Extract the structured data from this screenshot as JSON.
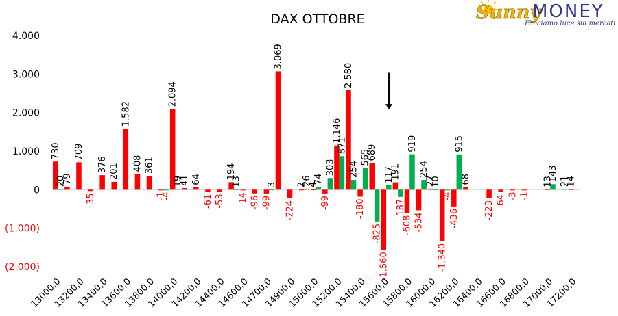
{
  "logo": {
    "word1": "Sunny",
    "word2": "MONEY",
    "tagline": "Facciamo luce sui mercati"
  },
  "colors": {
    "call": "#ff0000",
    "put": "#00b050",
    "negative_label": "#ff0000",
    "axis_label": "#000000",
    "arrow": "#000000"
  },
  "chart_data": {
    "type": "bar",
    "title": "DAX OTTOBRE",
    "xlabel": "",
    "ylabel": "",
    "ylim": [
      -2000,
      4000
    ],
    "yticks": [
      4000,
      3000,
      2000,
      1000,
      0,
      -1000,
      -2000
    ],
    "ytick_labels": [
      "4.000",
      "3.000",
      "2.000",
      "1.000",
      "0",
      "(1.000)",
      "(2.000)"
    ],
    "grid": false,
    "legend": "none",
    "categories": [
      "13000,0",
      "13100,0",
      "13200,0",
      "13300,0",
      "13400,0",
      "13500,0",
      "13600,0",
      "13700,0",
      "13800,0",
      "13900,0",
      "14000,0",
      "14100,0",
      "14200,0",
      "14300,0",
      "14400,0",
      "14500,0",
      "14600,0",
      "14650,0",
      "14700,0",
      "14800,0",
      "14900,0",
      "14950,0",
      "15000,0",
      "15100,0",
      "15200,0",
      "15300,0",
      "15400,0",
      "15500,0",
      "15600,0",
      "15700,0",
      "15800,0",
      "15900,0",
      "16000,0",
      "16100,0",
      "16200,0",
      "16300,0",
      "16400,0",
      "16500,0",
      "16600,0",
      "16700,0",
      "16800,0",
      "16900,0",
      "17000,0",
      "17100,0",
      "17200,0"
    ],
    "visible_category_labels": [
      "13000,0",
      "13200,0",
      "13400,0",
      "13600,0",
      "13800,0",
      "14000,0",
      "14200,0",
      "14400,0",
      "14600,0",
      "14700,0",
      "14900,0",
      "15000,0",
      "15200,0",
      "15400,0",
      "15600,0",
      "15800,0",
      "16000,0",
      "16200,0",
      "16400,0",
      "16600,0",
      "16800,0",
      "17000,0",
      "17200,0"
    ],
    "series": [
      {
        "color": "#ff0000",
        "values": [
          730,
          79,
          709,
          -35,
          376,
          201,
          1582,
          408,
          361,
          -1,
          2094,
          41,
          64,
          -61,
          -53,
          194,
          -14,
          -96,
          -99,
          3069,
          -224,
          2,
          4,
          -99,
          1146,
          2580,
          -180,
          689,
          -1560,
          191,
          -608,
          -534,
          27,
          -1340,
          -436,
          68,
          null,
          -223,
          -64,
          -3,
          -1,
          null,
          13,
          null,
          14
        ]
      },
      {
        "color": "#00b050",
        "values": [
          20,
          null,
          null,
          null,
          null,
          null,
          null,
          null,
          null,
          -4,
          19,
          null,
          null,
          null,
          null,
          13,
          null,
          null,
          3,
          null,
          null,
          26,
          74,
          303,
          871,
          254,
          565,
          -825,
          117,
          -187,
          919,
          254,
          10,
          -4,
          915,
          null,
          null,
          null,
          null,
          null,
          null,
          null,
          143,
          21,
          null
        ]
      }
    ],
    "annotations": [
      {
        "type": "down-arrow",
        "near_category": "15600,0",
        "from_value": 3050,
        "to_value": 2080
      }
    ]
  }
}
